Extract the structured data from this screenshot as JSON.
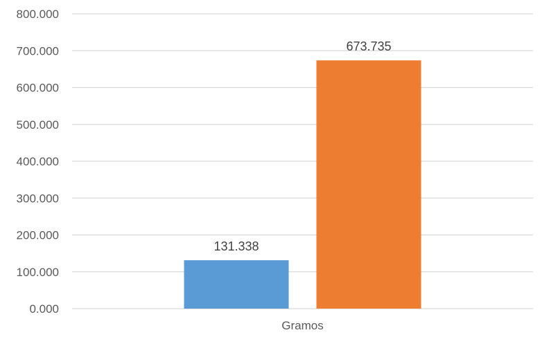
{
  "chart_data": {
    "type": "bar",
    "categories": [
      "Gramos"
    ],
    "series": [
      {
        "values": [
          131.338
        ],
        "color": "#5B9BD5"
      },
      {
        "values": [
          673.735
        ],
        "color": "#ED7D31"
      }
    ],
    "data_labels": [
      "131.338",
      "673.735"
    ],
    "y_ticks": [
      "0.000",
      "100.000",
      "200.000",
      "300.000",
      "400.000",
      "500.000",
      "600.000",
      "700.000",
      "800.000"
    ],
    "ylim": [
      0,
      800
    ],
    "grid": true,
    "legend": "none",
    "title": "",
    "xlabel": "",
    "ylabel": ""
  }
}
